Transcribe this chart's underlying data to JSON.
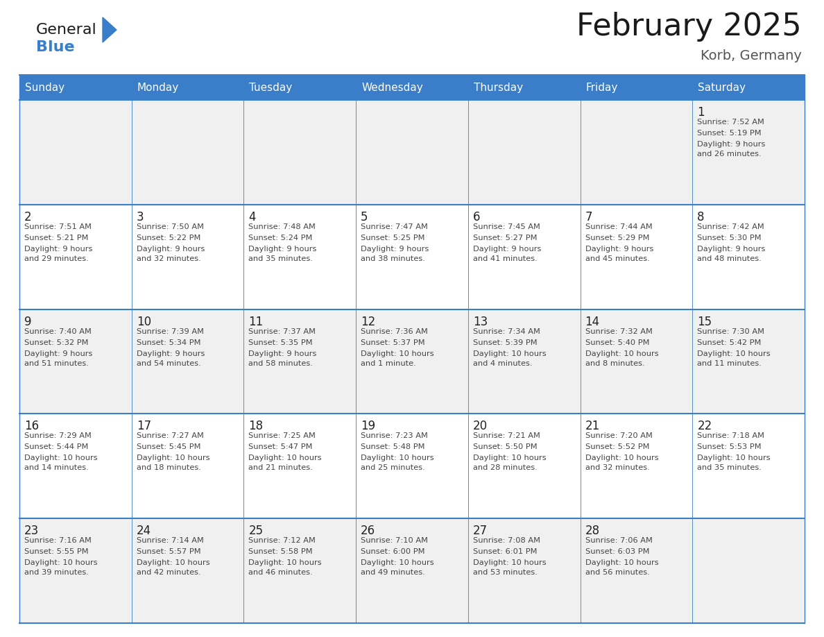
{
  "title": "February 2025",
  "subtitle": "Korb, Germany",
  "header_bg": "#3A7DC9",
  "header_text_color": "#FFFFFF",
  "border_color": "#3A7DC9",
  "text_color": "#444444",
  "day_number_color": "#222222",
  "small_text_color": "#444444",
  "days_of_week": [
    "Sunday",
    "Monday",
    "Tuesday",
    "Wednesday",
    "Thursday",
    "Friday",
    "Saturday"
  ],
  "calendar_data": [
    [
      null,
      null,
      null,
      null,
      null,
      null,
      {
        "day": "1",
        "sunrise": "7:52 AM",
        "sunset": "5:19 PM",
        "daylight1": "9 hours",
        "daylight2": "and 26 minutes."
      }
    ],
    [
      {
        "day": "2",
        "sunrise": "7:51 AM",
        "sunset": "5:21 PM",
        "daylight1": "9 hours",
        "daylight2": "and 29 minutes."
      },
      {
        "day": "3",
        "sunrise": "7:50 AM",
        "sunset": "5:22 PM",
        "daylight1": "9 hours",
        "daylight2": "and 32 minutes."
      },
      {
        "day": "4",
        "sunrise": "7:48 AM",
        "sunset": "5:24 PM",
        "daylight1": "9 hours",
        "daylight2": "and 35 minutes."
      },
      {
        "day": "5",
        "sunrise": "7:47 AM",
        "sunset": "5:25 PM",
        "daylight1": "9 hours",
        "daylight2": "and 38 minutes."
      },
      {
        "day": "6",
        "sunrise": "7:45 AM",
        "sunset": "5:27 PM",
        "daylight1": "9 hours",
        "daylight2": "and 41 minutes."
      },
      {
        "day": "7",
        "sunrise": "7:44 AM",
        "sunset": "5:29 PM",
        "daylight1": "9 hours",
        "daylight2": "and 45 minutes."
      },
      {
        "day": "8",
        "sunrise": "7:42 AM",
        "sunset": "5:30 PM",
        "daylight1": "9 hours",
        "daylight2": "and 48 minutes."
      }
    ],
    [
      {
        "day": "9",
        "sunrise": "7:40 AM",
        "sunset": "5:32 PM",
        "daylight1": "9 hours",
        "daylight2": "and 51 minutes."
      },
      {
        "day": "10",
        "sunrise": "7:39 AM",
        "sunset": "5:34 PM",
        "daylight1": "9 hours",
        "daylight2": "and 54 minutes."
      },
      {
        "day": "11",
        "sunrise": "7:37 AM",
        "sunset": "5:35 PM",
        "daylight1": "9 hours",
        "daylight2": "and 58 minutes."
      },
      {
        "day": "12",
        "sunrise": "7:36 AM",
        "sunset": "5:37 PM",
        "daylight1": "10 hours",
        "daylight2": "and 1 minute."
      },
      {
        "day": "13",
        "sunrise": "7:34 AM",
        "sunset": "5:39 PM",
        "daylight1": "10 hours",
        "daylight2": "and 4 minutes."
      },
      {
        "day": "14",
        "sunrise": "7:32 AM",
        "sunset": "5:40 PM",
        "daylight1": "10 hours",
        "daylight2": "and 8 minutes."
      },
      {
        "day": "15",
        "sunrise": "7:30 AM",
        "sunset": "5:42 PM",
        "daylight1": "10 hours",
        "daylight2": "and 11 minutes."
      }
    ],
    [
      {
        "day": "16",
        "sunrise": "7:29 AM",
        "sunset": "5:44 PM",
        "daylight1": "10 hours",
        "daylight2": "and 14 minutes."
      },
      {
        "day": "17",
        "sunrise": "7:27 AM",
        "sunset": "5:45 PM",
        "daylight1": "10 hours",
        "daylight2": "and 18 minutes."
      },
      {
        "day": "18",
        "sunrise": "7:25 AM",
        "sunset": "5:47 PM",
        "daylight1": "10 hours",
        "daylight2": "and 21 minutes."
      },
      {
        "day": "19",
        "sunrise": "7:23 AM",
        "sunset": "5:48 PM",
        "daylight1": "10 hours",
        "daylight2": "and 25 minutes."
      },
      {
        "day": "20",
        "sunrise": "7:21 AM",
        "sunset": "5:50 PM",
        "daylight1": "10 hours",
        "daylight2": "and 28 minutes."
      },
      {
        "day": "21",
        "sunrise": "7:20 AM",
        "sunset": "5:52 PM",
        "daylight1": "10 hours",
        "daylight2": "and 32 minutes."
      },
      {
        "day": "22",
        "sunrise": "7:18 AM",
        "sunset": "5:53 PM",
        "daylight1": "10 hours",
        "daylight2": "and 35 minutes."
      }
    ],
    [
      {
        "day": "23",
        "sunrise": "7:16 AM",
        "sunset": "5:55 PM",
        "daylight1": "10 hours",
        "daylight2": "and 39 minutes."
      },
      {
        "day": "24",
        "sunrise": "7:14 AM",
        "sunset": "5:57 PM",
        "daylight1": "10 hours",
        "daylight2": "and 42 minutes."
      },
      {
        "day": "25",
        "sunrise": "7:12 AM",
        "sunset": "5:58 PM",
        "daylight1": "10 hours",
        "daylight2": "and 46 minutes."
      },
      {
        "day": "26",
        "sunrise": "7:10 AM",
        "sunset": "6:00 PM",
        "daylight1": "10 hours",
        "daylight2": "and 49 minutes."
      },
      {
        "day": "27",
        "sunrise": "7:08 AM",
        "sunset": "6:01 PM",
        "daylight1": "10 hours",
        "daylight2": "and 53 minutes."
      },
      {
        "day": "28",
        "sunrise": "7:06 AM",
        "sunset": "6:03 PM",
        "daylight1": "10 hours",
        "daylight2": "and 56 minutes."
      },
      null
    ]
  ],
  "fig_width": 11.88,
  "fig_height": 9.18,
  "logo_general_color": "#1a1a1a",
  "logo_blue_color": "#3A7DC9",
  "logo_triangle_color": "#3A7DC9",
  "title_color": "#1a1a1a",
  "subtitle_color": "#555555",
  "cell_bg_even": "#F0F0F0",
  "cell_bg_odd": "#FFFFFF"
}
